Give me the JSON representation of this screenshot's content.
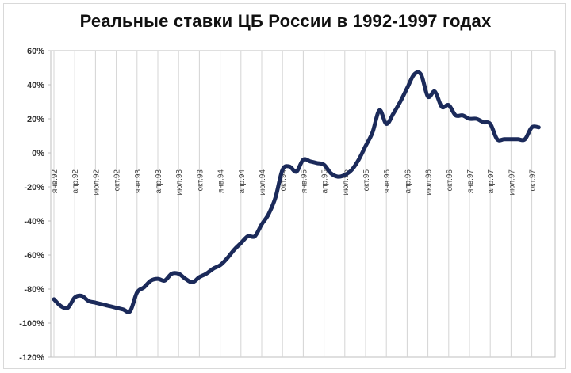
{
  "chart_data": {
    "type": "line",
    "title": "Реальные ставки ЦБ России в 1992-1997 годах",
    "xlabel": "",
    "ylabel": "",
    "y_unit": "%",
    "ylim": [
      -120,
      60
    ],
    "y_ticks": [
      60,
      40,
      20,
      0,
      -20,
      -40,
      -60,
      -80,
      -100,
      -120
    ],
    "y_tick_labels": [
      "60%",
      "40%",
      "20%",
      "0%",
      "-20%",
      "-40%",
      "-60%",
      "-80%",
      "-100%",
      "-120%"
    ],
    "x_tick_labels": [
      "янв.92",
      "апр.92",
      "июл.92",
      "окт.92",
      "янв.93",
      "апр.93",
      "июл.93",
      "окт.93",
      "янв.94",
      "апр.94",
      "июл.94",
      "окт.94",
      "янв.95",
      "апр.95",
      "июл.95",
      "окт.95",
      "янв.96",
      "апр.96",
      "июл.96",
      "окт.96",
      "янв.97",
      "апр.97",
      "июл.97",
      "окт.97"
    ],
    "grid": "vertical",
    "legend": "none",
    "line_color": "#1b2a5a",
    "series": [
      {
        "values": [
          -86,
          -90,
          -91,
          -85,
          -84,
          -87,
          -88,
          -89,
          -90,
          -91,
          -92,
          -93,
          -82,
          -79,
          -75,
          -74,
          -75,
          -71,
          -71,
          -74,
          -76,
          -73,
          -71,
          -68,
          -66,
          -62,
          -57,
          -53,
          -49,
          -49,
          -42,
          -36,
          -26,
          -10,
          -8,
          -11,
          -4,
          -5,
          -6,
          -7,
          -12,
          -14,
          -13,
          -10,
          -4,
          4,
          12,
          25,
          17,
          23,
          30,
          38,
          46,
          46,
          33,
          36,
          27,
          28,
          22,
          22,
          20,
          20,
          18,
          17,
          8,
          8,
          8,
          8,
          8,
          15,
          15
        ]
      }
    ]
  }
}
